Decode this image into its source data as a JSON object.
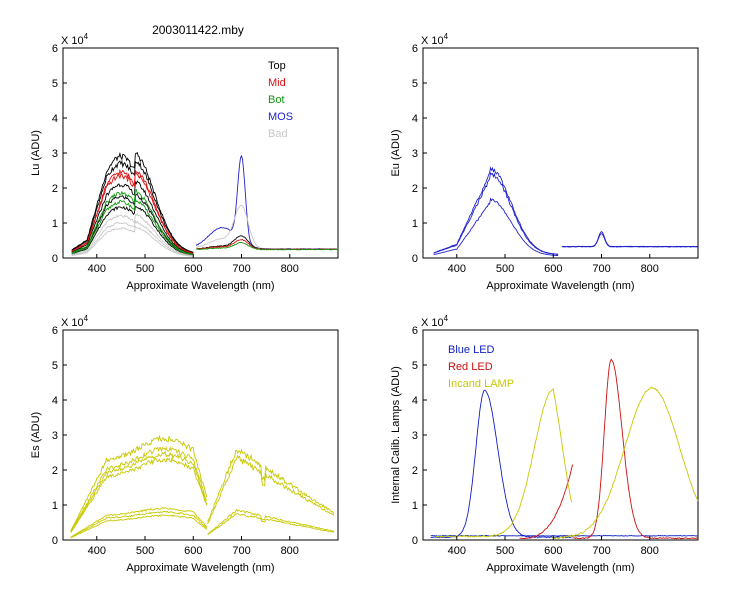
{
  "figure_title": "2003011422.mby",
  "colors": {
    "top": "#000000",
    "mid": "#dd1111",
    "bot": "#119911",
    "mos": "#2222cc",
    "bad": "#c8c8c8",
    "blue_led": "#1020c0",
    "red_led": "#cc1010",
    "lamp": "#c8c800"
  },
  "chart_data": [
    {
      "id": "lu",
      "type": "line",
      "title": "2003011422.mby",
      "xlabel": "Approximate Wavelength (nm)",
      "ylabel": "Lu (ADU)",
      "xlim": [
        330,
        900
      ],
      "ylim": [
        0,
        60000
      ],
      "exponent_label": "X 10",
      "exponent": "4",
      "xticks": [
        400,
        500,
        600,
        700,
        800
      ],
      "xtick_labels": [
        "400",
        "500",
        "600",
        "700",
        "800"
      ],
      "yticks": [
        0,
        10000,
        20000,
        30000,
        40000,
        50000,
        60000
      ],
      "ytick_labels": [
        "0",
        "1",
        "2",
        "3",
        "4",
        "5",
        "6"
      ],
      "legend": [
        {
          "label": "Top",
          "color": "#000000"
        },
        {
          "label": "Mid",
          "color": "#dd1111"
        },
        {
          "label": "Bot",
          "color": "#119911"
        },
        {
          "label": "MOS",
          "color": "#2222cc"
        },
        {
          "label": "Bad",
          "color": "#c8c8c8"
        }
      ],
      "series": [
        {
          "name": "Top",
          "group": "a",
          "peak": 29000,
          "color": "#000000"
        },
        {
          "name": "Top",
          "group": "a",
          "peak": 27000,
          "color": "#000000"
        },
        {
          "name": "Top",
          "group": "a",
          "peak": 21000,
          "color": "#000000"
        },
        {
          "name": "Top",
          "group": "a",
          "peak": 17500,
          "color": "#000000"
        },
        {
          "name": "Top",
          "group": "a",
          "peak": 14500,
          "color": "#000000"
        },
        {
          "name": "Mid",
          "group": "a",
          "peak": 24500,
          "color": "#dd1111"
        },
        {
          "name": "Mid",
          "group": "a",
          "peak": 23500,
          "color": "#dd1111"
        },
        {
          "name": "Bot",
          "group": "a",
          "peak": 18500,
          "color": "#119911"
        },
        {
          "name": "Bot",
          "group": "a",
          "peak": 16000,
          "color": "#119911"
        },
        {
          "name": "Bad",
          "group": "a",
          "peak": 12000,
          "color": "#c8c8c8"
        },
        {
          "name": "Bad",
          "group": "a",
          "peak": 10000,
          "color": "#c8c8c8"
        },
        {
          "name": "Bad",
          "group": "a",
          "peak": 8500,
          "color": "#c8c8c8"
        },
        {
          "name": "MOS",
          "group": "b",
          "base": 2600,
          "peak": 27000,
          "color": "#2222cc"
        },
        {
          "name": "Bad",
          "group": "b",
          "base": 2500,
          "peak": 14000,
          "color": "#c8c8c8"
        },
        {
          "name": "Top",
          "group": "b",
          "base": 2500,
          "peak": 6000,
          "color": "#000000"
        },
        {
          "name": "Mid",
          "group": "b",
          "base": 2500,
          "peak": 5000,
          "color": "#dd1111"
        },
        {
          "name": "Bot",
          "group": "b",
          "base": 2400,
          "peak": 4200,
          "color": "#119911"
        }
      ]
    },
    {
      "id": "eu",
      "type": "line",
      "title": "",
      "xlabel": "Approximate Wavelength (nm)",
      "ylabel": "Eu  (ADU)",
      "xlim": [
        330,
        900
      ],
      "ylim": [
        0,
        60000
      ],
      "exponent_label": "X 10",
      "exponent": "4",
      "xticks": [
        400,
        500,
        600,
        700,
        800
      ],
      "xtick_labels": [
        "400",
        "500",
        "600",
        "700",
        "800"
      ],
      "yticks": [
        0,
        10000,
        20000,
        30000,
        40000,
        50000,
        60000
      ],
      "ytick_labels": [
        "0",
        "1",
        "2",
        "3",
        "4",
        "5",
        "6"
      ],
      "series": [
        {
          "name": "Eu",
          "group": "a",
          "peak": 24500,
          "color": "#2222cc"
        },
        {
          "name": "Eu",
          "group": "a",
          "peak": 23000,
          "color": "#2222cc"
        },
        {
          "name": "Eu",
          "group": "a",
          "peak": 16000,
          "color": "#2222cc"
        },
        {
          "name": "Eu",
          "group": "b",
          "base": 3300,
          "peak": 7500,
          "color": "#2222cc"
        },
        {
          "name": "Eu",
          "group": "b",
          "base": 3200,
          "peak": 7000,
          "color": "#2222cc"
        }
      ]
    },
    {
      "id": "es",
      "type": "line",
      "title": "",
      "xlabel": "Approximate Wavelength (nm)",
      "ylabel": "Es  (ADU)",
      "xlim": [
        330,
        900
      ],
      "ylim": [
        0,
        60000
      ],
      "exponent_label": "X 10",
      "exponent": "4",
      "xticks": [
        400,
        500,
        600,
        700,
        800
      ],
      "xtick_labels": [
        "400",
        "500",
        "600",
        "700",
        "800"
      ],
      "yticks": [
        0,
        10000,
        20000,
        30000,
        40000,
        50000,
        60000
      ],
      "ytick_labels": [
        "0",
        "1",
        "2",
        "3",
        "4",
        "5",
        "6"
      ],
      "series": [
        {
          "name": "Es",
          "group": "a",
          "peak": 29000,
          "color": "#c8c800"
        },
        {
          "name": "Es",
          "group": "a",
          "peak": 26000,
          "color": "#c8c800"
        },
        {
          "name": "Es",
          "group": "a",
          "peak": 24500,
          "color": "#c8c800"
        },
        {
          "name": "Es",
          "group": "a",
          "peak": 23000,
          "color": "#c8c800"
        },
        {
          "name": "Es",
          "group": "a",
          "peak": 9000,
          "color": "#c8c800"
        },
        {
          "name": "Es",
          "group": "a",
          "peak": 8000,
          "color": "#c8c800"
        },
        {
          "name": "Es",
          "group": "a",
          "peak": 7000,
          "color": "#c8c800"
        },
        {
          "name": "Es",
          "group": "b",
          "peak": 26000,
          "color": "#c8c800"
        },
        {
          "name": "Es",
          "group": "b",
          "peak": 23500,
          "color": "#c8c800"
        },
        {
          "name": "Es",
          "group": "b",
          "peak": 8500,
          "color": "#c8c800"
        },
        {
          "name": "Es",
          "group": "b",
          "peak": 7500,
          "color": "#c8c800"
        }
      ]
    },
    {
      "id": "cal",
      "type": "line",
      "title": "",
      "xlabel": "Approximate Wavelength (nm)",
      "ylabel": "Internal Calib. Lamps (ADU)",
      "xlim": [
        330,
        900
      ],
      "ylim": [
        0,
        60000
      ],
      "exponent_label": "X 10",
      "exponent": "4",
      "xticks": [
        400,
        500,
        600,
        700,
        800
      ],
      "xtick_labels": [
        "400",
        "500",
        "600",
        "700",
        "800"
      ],
      "yticks": [
        0,
        10000,
        20000,
        30000,
        40000,
        50000,
        60000
      ],
      "ytick_labels": [
        "0",
        "1",
        "2",
        "3",
        "4",
        "5",
        "6"
      ],
      "legend": [
        {
          "label": "Blue LED",
          "color": "#1020c0"
        },
        {
          "label": "Red LED",
          "color": "#cc1010"
        },
        {
          "label": "Incand LAMP",
          "color": "#c8c800"
        }
      ],
      "series": [
        {
          "name": "Blue LED",
          "group": "a",
          "center": 458,
          "peak": 42000,
          "color": "#1020c0"
        },
        {
          "name": "Blue LED",
          "group": "b",
          "base": 1200,
          "color": "#1020c0"
        },
        {
          "name": "Red LED",
          "group": "a",
          "peak": 21000,
          "color": "#cc1010"
        },
        {
          "name": "Red LED",
          "group": "b",
          "center": 720,
          "peak": 51000,
          "color": "#cc1010"
        },
        {
          "name": "Incand LAMP",
          "group": "a",
          "center": 600,
          "peak": 42000,
          "color": "#c8c800"
        },
        {
          "name": "Incand LAMP",
          "group": "b",
          "center": 805,
          "peak": 43000,
          "color": "#c8c800"
        }
      ]
    }
  ]
}
